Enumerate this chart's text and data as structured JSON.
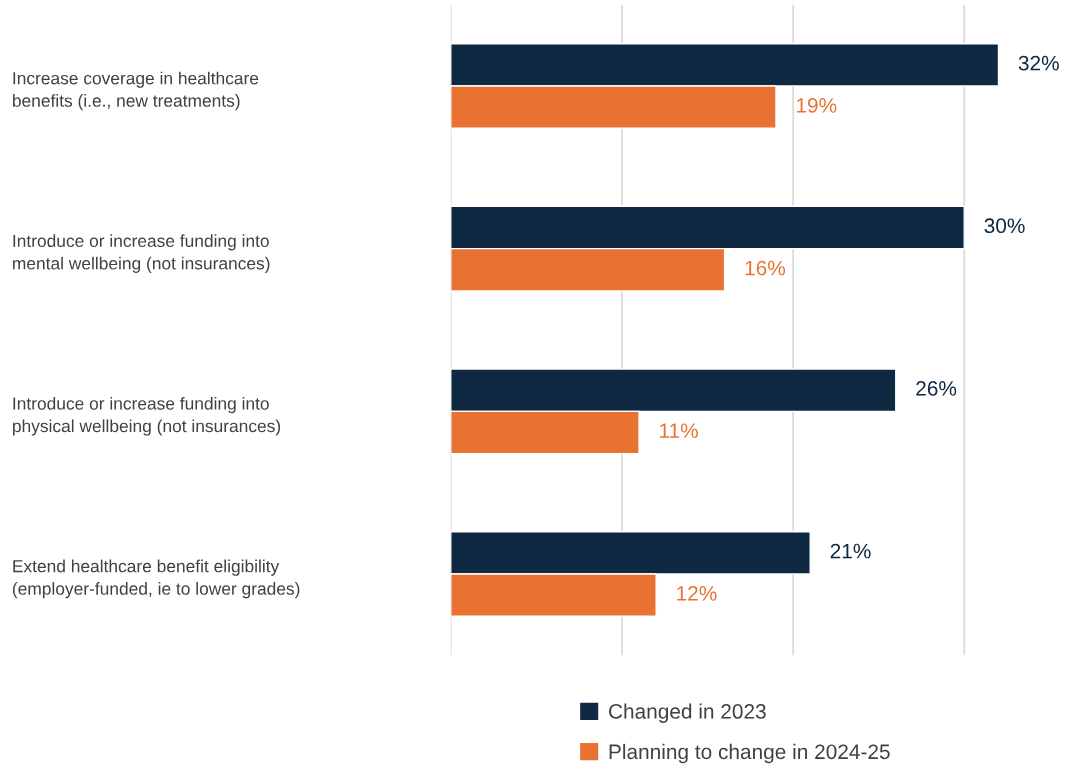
{
  "chart_data": {
    "type": "bar",
    "orientation": "horizontal",
    "categories": [
      "Increase coverage in healthcare\nbenefits (i.e., new treatments)",
      "Introduce or increase funding into\nmental wellbeing (not insurances)",
      "Introduce or increase funding into\nphysical wellbeing (not insurances)",
      "Extend healthcare benefit eligibility\n(employer-funded, ie to lower grades)"
    ],
    "series": [
      {
        "name": "Changed in 2023",
        "color": "#0f2942",
        "values": [
          32,
          30,
          26,
          21
        ],
        "value_labels": [
          "32%",
          "30%",
          "26%",
          "21%"
        ]
      },
      {
        "name": "Planning to change in 2024-25",
        "color": "#e97132",
        "values": [
          19,
          16,
          11,
          12
        ],
        "value_labels": [
          "19%",
          "16%",
          "11%",
          "12%"
        ]
      }
    ],
    "xticks": [
      {
        "value": 0,
        "label": null
      },
      {
        "value": 10,
        "label": null
      },
      {
        "value": 20,
        "label": null
      },
      {
        "value": 30,
        "label": null
      }
    ],
    "tick_labels": "y",
    "grid": "x",
    "legend": "bottom right"
  }
}
